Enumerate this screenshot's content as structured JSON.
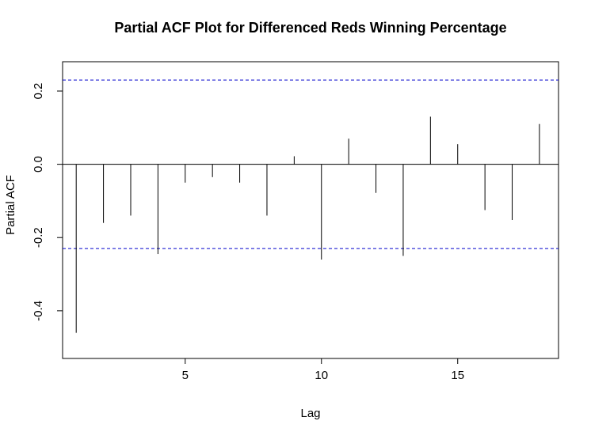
{
  "chart_data": {
    "type": "bar",
    "title": "Partial ACF Plot for Differenced Reds Winning Percentage",
    "xlabel": "Lag",
    "ylabel": "Partial ACF",
    "x": [
      1,
      2,
      3,
      4,
      5,
      6,
      7,
      8,
      9,
      10,
      11,
      12,
      13,
      14,
      15,
      16,
      17,
      18
    ],
    "values": [
      -0.46,
      -0.16,
      -0.14,
      -0.245,
      -0.05,
      -0.035,
      -0.05,
      -0.14,
      0.022,
      -0.26,
      0.07,
      -0.078,
      -0.25,
      0.13,
      0.055,
      -0.125,
      -0.152,
      0.11
    ],
    "confidence_bound": 0.23,
    "xlim": [
      0.5,
      18.7
    ],
    "ylim": [
      -0.53,
      0.28
    ],
    "xticks": [
      5,
      10,
      15
    ],
    "yticks": [
      -0.4,
      -0.2,
      0.0,
      0.2
    ],
    "ytick_labels": [
      "-0.4",
      "-0.2",
      "0.0",
      "0.2"
    ],
    "colors": {
      "bars": "#000000",
      "confidence": "#0000cc",
      "zero_line": "#000000"
    },
    "grid": false,
    "legend": "none"
  }
}
